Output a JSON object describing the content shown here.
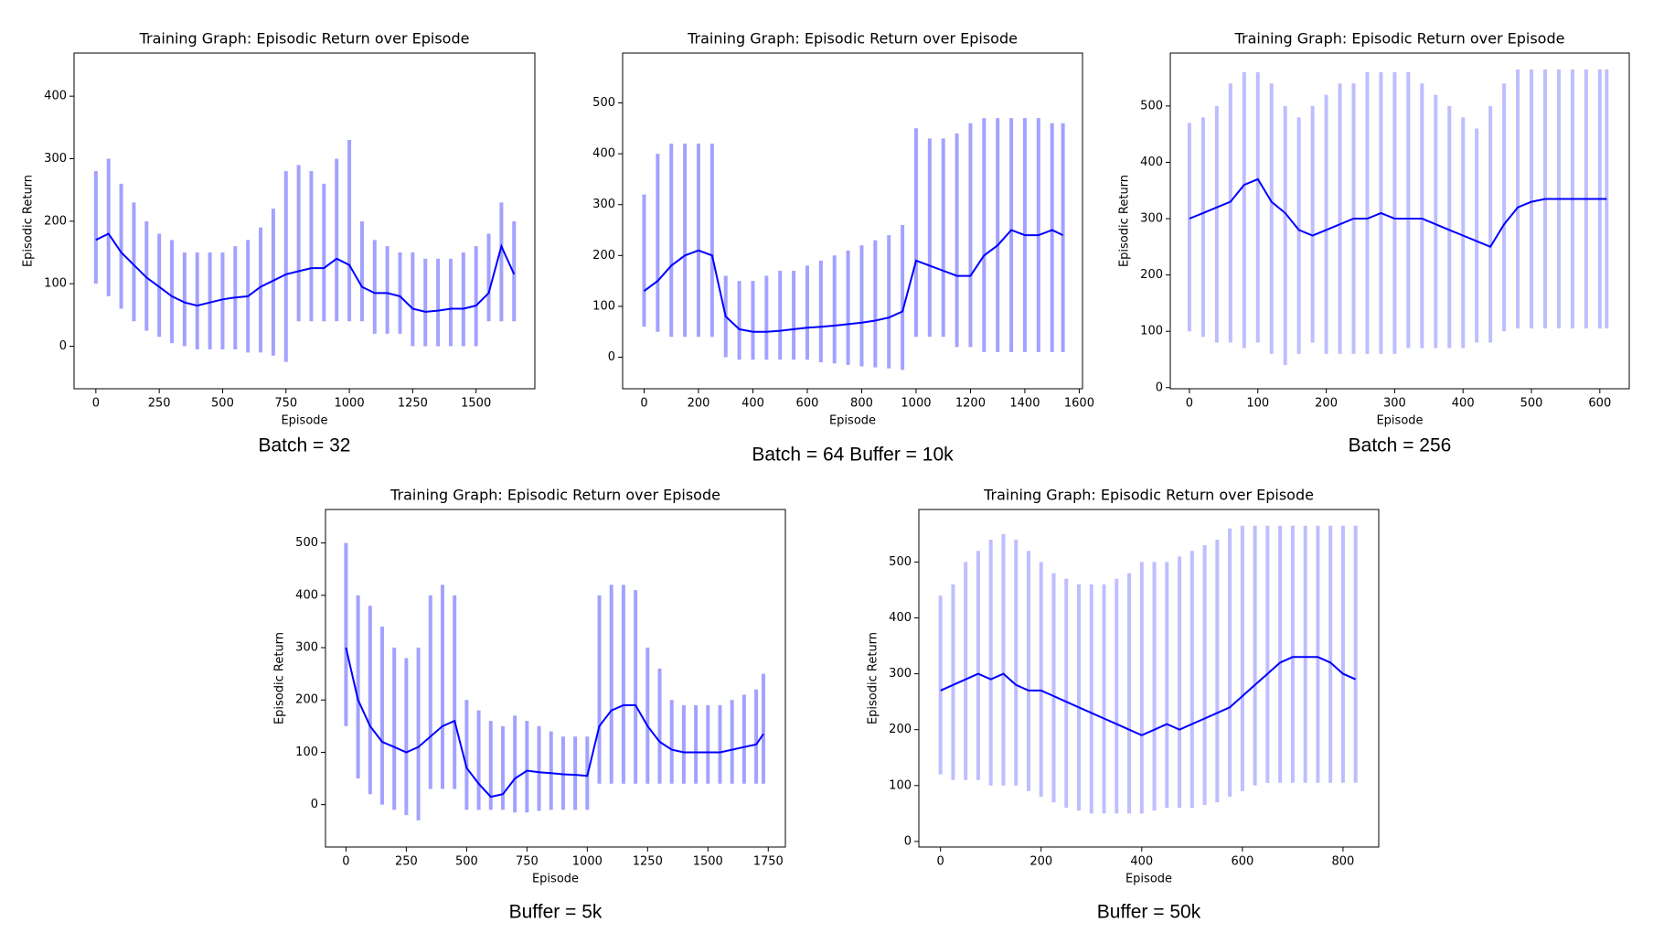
{
  "chart_data": [
    {
      "type": "line",
      "title": "Training Graph: Episodic Return over Episode",
      "xlabel": "Episode",
      "ylabel": "Episodic Return",
      "caption": "Batch = 32",
      "x": [
        0,
        50,
        100,
        150,
        200,
        250,
        300,
        350,
        400,
        450,
        500,
        550,
        600,
        650,
        700,
        750,
        800,
        850,
        900,
        950,
        1000,
        1050,
        1100,
        1150,
        1200,
        1250,
        1300,
        1350,
        1400,
        1450,
        1500,
        1550,
        1600,
        1650
      ],
      "series": [
        {
          "color": "#0000ff",
          "values": [
            170,
            180,
            150,
            130,
            110,
            95,
            80,
            70,
            65,
            70,
            75,
            78,
            80,
            95,
            105,
            115,
            120,
            125,
            125,
            140,
            130,
            95,
            85,
            85,
            80,
            60,
            55,
            57,
            60,
            60,
            65,
            85,
            160,
            115
          ]
        }
      ],
      "band": {
        "color": "#5555ff",
        "lower": [
          100,
          80,
          60,
          40,
          25,
          15,
          5,
          0,
          -5,
          -5,
          -5,
          -5,
          -10,
          -10,
          -15,
          -25,
          40,
          40,
          40,
          40,
          40,
          40,
          20,
          20,
          20,
          0,
          0,
          0,
          0,
          0,
          0,
          40,
          40,
          40
        ],
        "upper": [
          280,
          300,
          260,
          230,
          200,
          180,
          170,
          150,
          150,
          150,
          150,
          160,
          170,
          190,
          220,
          280,
          290,
          280,
          260,
          300,
          330,
          200,
          170,
          160,
          150,
          150,
          140,
          140,
          140,
          150,
          160,
          180,
          230,
          200
        ]
      },
      "xlim": [
        -86,
        1732
      ],
      "ylim": [
        -68,
        469
      ],
      "xticks": [
        0,
        250,
        500,
        750,
        1000,
        1250,
        1500
      ],
      "yticks": [
        0,
        100,
        200,
        300,
        400
      ]
    },
    {
      "type": "line",
      "title": "Training Graph: Episodic Return over Episode",
      "xlabel": "Episode",
      "caption": "Batch = 64  Buffer = 10k",
      "x": [
        0,
        50,
        100,
        150,
        200,
        250,
        300,
        350,
        400,
        450,
        500,
        550,
        600,
        650,
        700,
        750,
        800,
        850,
        900,
        950,
        1000,
        1050,
        1100,
        1150,
        1200,
        1250,
        1300,
        1350,
        1400,
        1450,
        1500,
        1540
      ],
      "series": [
        {
          "color": "#0000ff",
          "values": [
            130,
            150,
            180,
            200,
            210,
            200,
            80,
            55,
            50,
            50,
            52,
            55,
            58,
            60,
            62,
            65,
            68,
            72,
            78,
            90,
            190,
            180,
            170,
            160,
            160,
            200,
            220,
            250,
            240,
            240,
            250,
            240
          ]
        }
      ],
      "band": {
        "color": "#5555ff",
        "lower": [
          60,
          50,
          40,
          40,
          40,
          40,
          0,
          -5,
          -5,
          -5,
          -5,
          -5,
          -5,
          -10,
          -12,
          -15,
          -18,
          -20,
          -22,
          -25,
          40,
          40,
          40,
          20,
          20,
          10,
          10,
          10,
          10,
          10,
          10,
          10
        ],
        "upper": [
          320,
          400,
          420,
          420,
          420,
          420,
          160,
          150,
          150,
          160,
          170,
          170,
          180,
          190,
          200,
          210,
          220,
          230,
          240,
          260,
          450,
          430,
          430,
          440,
          460,
          470,
          470,
          470,
          470,
          470,
          460,
          460
        ]
      },
      "xlim": [
        -79,
        1612
      ],
      "ylim": [
        -62,
        598
      ],
      "xticks": [
        0,
        200,
        400,
        600,
        800,
        1000,
        1200,
        1400,
        1600
      ],
      "yticks": [
        0,
        100,
        200,
        300,
        400,
        500
      ]
    },
    {
      "type": "line",
      "title": "Training Graph: Episodic Return over Episode",
      "xlabel": "Episode",
      "ylabel": "Episodic Return",
      "caption": "Batch = 256",
      "x": [
        0,
        20,
        40,
        60,
        80,
        100,
        120,
        140,
        160,
        180,
        200,
        220,
        240,
        260,
        280,
        300,
        320,
        340,
        360,
        380,
        400,
        420,
        440,
        460,
        480,
        500,
        520,
        540,
        560,
        580,
        600,
        610
      ],
      "series": [
        {
          "color": "#0000ff",
          "values": [
            300,
            310,
            320,
            330,
            360,
            370,
            330,
            310,
            280,
            270,
            280,
            290,
            300,
            300,
            310,
            300,
            300,
            300,
            290,
            280,
            270,
            260,
            250,
            290,
            320,
            330,
            335,
            335,
            335,
            335,
            335,
            335
          ]
        }
      ],
      "band": {
        "color": "#8888ff",
        "lower": [
          100,
          90,
          80,
          80,
          70,
          80,
          60,
          40,
          60,
          80,
          60,
          60,
          60,
          60,
          60,
          60,
          70,
          70,
          70,
          70,
          70,
          80,
          80,
          100,
          105,
          105,
          105,
          105,
          105,
          105,
          105,
          105
        ],
        "upper": [
          470,
          480,
          500,
          540,
          560,
          560,
          540,
          500,
          480,
          500,
          520,
          540,
          540,
          560,
          560,
          560,
          560,
          540,
          520,
          500,
          480,
          460,
          500,
          540,
          565,
          565,
          565,
          565,
          565,
          565,
          565,
          565
        ]
      },
      "xlim": [
        -28,
        643
      ],
      "ylim": [
        -2,
        594
      ],
      "xticks": [
        0,
        100,
        200,
        300,
        400,
        500,
        600
      ],
      "yticks": [
        0,
        100,
        200,
        300,
        400,
        500
      ]
    },
    {
      "type": "line",
      "title": "Training Graph: Episodic Return over Episode",
      "xlabel": "Episode",
      "ylabel": "Episodic Return",
      "caption": "Buffer = 5k",
      "x": [
        0,
        50,
        100,
        150,
        200,
        250,
        300,
        350,
        400,
        450,
        500,
        550,
        600,
        650,
        700,
        750,
        800,
        850,
        900,
        950,
        1000,
        1050,
        1100,
        1150,
        1200,
        1250,
        1300,
        1350,
        1400,
        1450,
        1500,
        1550,
        1600,
        1650,
        1700,
        1730
      ],
      "series": [
        {
          "color": "#0000ff",
          "values": [
            300,
            200,
            150,
            120,
            110,
            100,
            110,
            130,
            150,
            160,
            70,
            40,
            15,
            20,
            50,
            65,
            62,
            60,
            58,
            57,
            55,
            150,
            180,
            190,
            190,
            150,
            120,
            105,
            100,
            100,
            100,
            100,
            105,
            110,
            115,
            135
          ]
        }
      ],
      "band": {
        "color": "#5555ff",
        "lower": [
          150,
          50,
          20,
          0,
          -10,
          -20,
          -30,
          30,
          30,
          30,
          -10,
          -10,
          -10,
          -10,
          -15,
          -15,
          -12,
          -10,
          -10,
          -10,
          -10,
          40,
          40,
          40,
          40,
          40,
          40,
          40,
          40,
          40,
          40,
          40,
          40,
          40,
          40,
          40
        ],
        "upper": [
          500,
          400,
          380,
          340,
          300,
          280,
          300,
          400,
          420,
          400,
          200,
          180,
          160,
          150,
          170,
          160,
          150,
          140,
          130,
          130,
          130,
          400,
          420,
          420,
          410,
          300,
          260,
          200,
          190,
          190,
          190,
          190,
          200,
          210,
          220,
          250
        ]
      },
      "xlim": [
        -85,
        1821
      ],
      "ylim": [
        -81,
        564
      ],
      "xticks": [
        0,
        250,
        500,
        750,
        1000,
        1250,
        1500,
        1750
      ],
      "yticks": [
        0,
        100,
        200,
        300,
        400,
        500
      ]
    },
    {
      "type": "line",
      "title": "Training Graph: Episodic Return over Episode",
      "xlabel": "Episode",
      "ylabel": "Episodic Return",
      "caption": "Buffer = 50k",
      "x": [
        0,
        25,
        50,
        75,
        100,
        125,
        150,
        175,
        200,
        225,
        250,
        275,
        300,
        325,
        350,
        375,
        400,
        425,
        450,
        475,
        500,
        525,
        550,
        575,
        600,
        625,
        650,
        675,
        700,
        725,
        750,
        775,
        800,
        825
      ],
      "series": [
        {
          "color": "#0000ff",
          "values": [
            270,
            280,
            290,
            300,
            290,
            300,
            280,
            270,
            270,
            260,
            250,
            240,
            230,
            220,
            210,
            200,
            190,
            200,
            210,
            200,
            210,
            220,
            230,
            240,
            260,
            280,
            300,
            320,
            330,
            330,
            330,
            320,
            300,
            290
          ]
        }
      ],
      "band": {
        "color": "#8888ff",
        "lower": [
          120,
          110,
          110,
          110,
          100,
          100,
          100,
          90,
          80,
          70,
          60,
          55,
          50,
          50,
          50,
          50,
          50,
          55,
          60,
          60,
          60,
          65,
          70,
          80,
          90,
          100,
          105,
          105,
          105,
          105,
          105,
          105,
          105,
          105
        ],
        "upper": [
          440,
          460,
          500,
          520,
          540,
          550,
          540,
          520,
          500,
          480,
          470,
          460,
          460,
          460,
          470,
          480,
          500,
          500,
          500,
          510,
          520,
          530,
          540,
          560,
          565,
          565,
          565,
          565,
          565,
          565,
          565,
          565,
          565,
          565
        ]
      },
      "xlim": [
        -43,
        871
      ],
      "ylim": [
        -10,
        594
      ],
      "xticks": [
        0,
        200,
        400,
        600,
        800
      ],
      "yticks": [
        0,
        100,
        200,
        300,
        400,
        500
      ]
    }
  ]
}
